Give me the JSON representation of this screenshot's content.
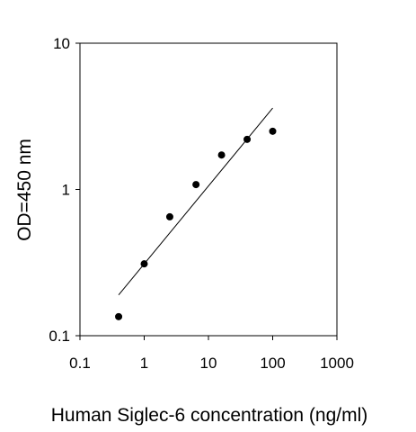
{
  "chart_data": {
    "type": "scatter",
    "title": "",
    "xlabel": "Human Siglec-6 concentration (ng/ml)",
    "ylabel": "OD=450 nm",
    "x_scale": "log",
    "y_scale": "log",
    "xlim": [
      0.1,
      1000
    ],
    "ylim": [
      0.1,
      10
    ],
    "x_ticks": [
      "0.1",
      "1",
      "10",
      "100",
      "1000"
    ],
    "y_ticks": [
      "0.1",
      "1",
      "10"
    ],
    "grid": false,
    "legend": "none",
    "points": [
      {
        "x": 0.4,
        "y": 0.135
      },
      {
        "x": 1.0,
        "y": 0.31
      },
      {
        "x": 2.5,
        "y": 0.65
      },
      {
        "x": 6.4,
        "y": 1.08
      },
      {
        "x": 16,
        "y": 1.72
      },
      {
        "x": 40,
        "y": 2.2
      },
      {
        "x": 100,
        "y": 2.5
      }
    ],
    "fit_line": {
      "x": [
        0.4,
        100
      ],
      "y": [
        0.19,
        3.6
      ]
    },
    "colors": {
      "points": "#000000",
      "line": "#000000",
      "axes": "#000000"
    }
  }
}
